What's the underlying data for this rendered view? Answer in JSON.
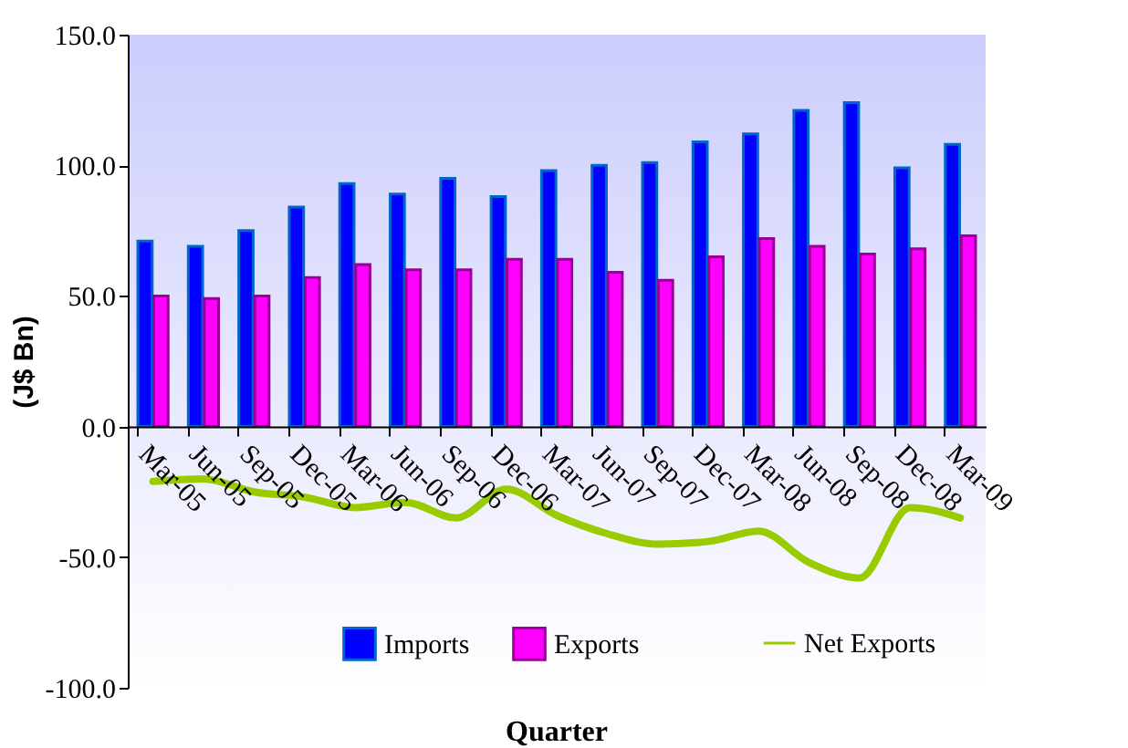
{
  "chart_data": {
    "type": "bar",
    "xlabel": "Quarter",
    "ylabel": "(J$ Bn)",
    "categories": [
      "Mar-05",
      "Jun-05",
      "Sep-05",
      "Dec-05",
      "Mar-06",
      "Jun-06",
      "Sep-06",
      "Dec-06",
      "Mar-07",
      "Jun-07",
      "Sep-07",
      "Dec-07",
      "Mar-08",
      "Jun-08",
      "Sep-08",
      "Dec-08",
      "Mar-09"
    ],
    "series": [
      {
        "name": "Imports",
        "color": "#0000ff",
        "values": [
          71,
          69,
          75,
          84,
          93,
          89,
          95,
          88,
          98,
          100,
          101,
          109,
          112,
          121,
          124,
          99,
          108
        ]
      },
      {
        "name": "Exports",
        "color": "#ff00ff",
        "values": [
          50,
          49,
          50,
          57,
          62,
          60,
          60,
          64,
          64,
          59,
          56,
          65,
          72,
          69,
          66,
          68,
          73
        ]
      },
      {
        "name": "Net Exports",
        "type": "line",
        "color": "#99cc00",
        "values": [
          -21,
          -20,
          -25,
          -27,
          -31,
          -29,
          -35,
          -24,
          -34,
          -41,
          -45,
          -44,
          -40,
          -52,
          -58,
          -31,
          -35
        ]
      }
    ],
    "ylim": [
      -100,
      150
    ],
    "yticks": [
      {
        "value": -100,
        "label": "-100.0"
      },
      {
        "value": -50,
        "label": "-50.0"
      },
      {
        "value": 0,
        "label": "0.0"
      },
      {
        "value": 50,
        "label": "50.0"
      },
      {
        "value": 100,
        "label": "100.0"
      },
      {
        "value": 150,
        "label": "150.0"
      }
    ],
    "legend": "bottom",
    "grid": false
  }
}
